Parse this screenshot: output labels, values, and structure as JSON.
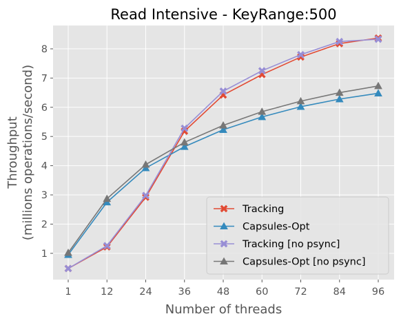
{
  "chart_data": {
    "type": "line",
    "title": "Read Intensive - KeyRange:500",
    "xlabel": "Number of threads",
    "ylabel_lines": [
      "Throughput",
      "(millions operations/second)"
    ],
    "x": [
      "1",
      "12",
      "24",
      "36",
      "48",
      "60",
      "72",
      "84",
      "96"
    ],
    "ylim": [
      0.1,
      8.8
    ],
    "yticks": [
      1,
      2,
      3,
      4,
      5,
      6,
      7,
      8
    ],
    "grid": true,
    "legend_position": "lower-right",
    "series": [
      {
        "name": "Tracking",
        "color": "#E24A33",
        "marker": "x-marker",
        "values": [
          0.48,
          1.22,
          2.92,
          5.18,
          6.42,
          7.12,
          7.72,
          8.18,
          8.37
        ]
      },
      {
        "name": "Capsules-Opt",
        "color": "#348ABD",
        "marker": "triangle-marker",
        "values": [
          0.95,
          2.75,
          3.92,
          4.65,
          5.23,
          5.67,
          6.02,
          6.28,
          6.48
        ]
      },
      {
        "name": "Tracking [no psync]",
        "color": "#988ED5",
        "marker": "x-marker",
        "values": [
          0.48,
          1.26,
          2.98,
          5.28,
          6.55,
          7.25,
          7.8,
          8.25,
          8.33
        ]
      },
      {
        "name": "Capsules-Opt [no psync]",
        "color": "#777777",
        "marker": "triangle-marker",
        "values": [
          1.02,
          2.87,
          4.04,
          4.8,
          5.38,
          5.85,
          6.21,
          6.5,
          6.73
        ]
      }
    ]
  }
}
